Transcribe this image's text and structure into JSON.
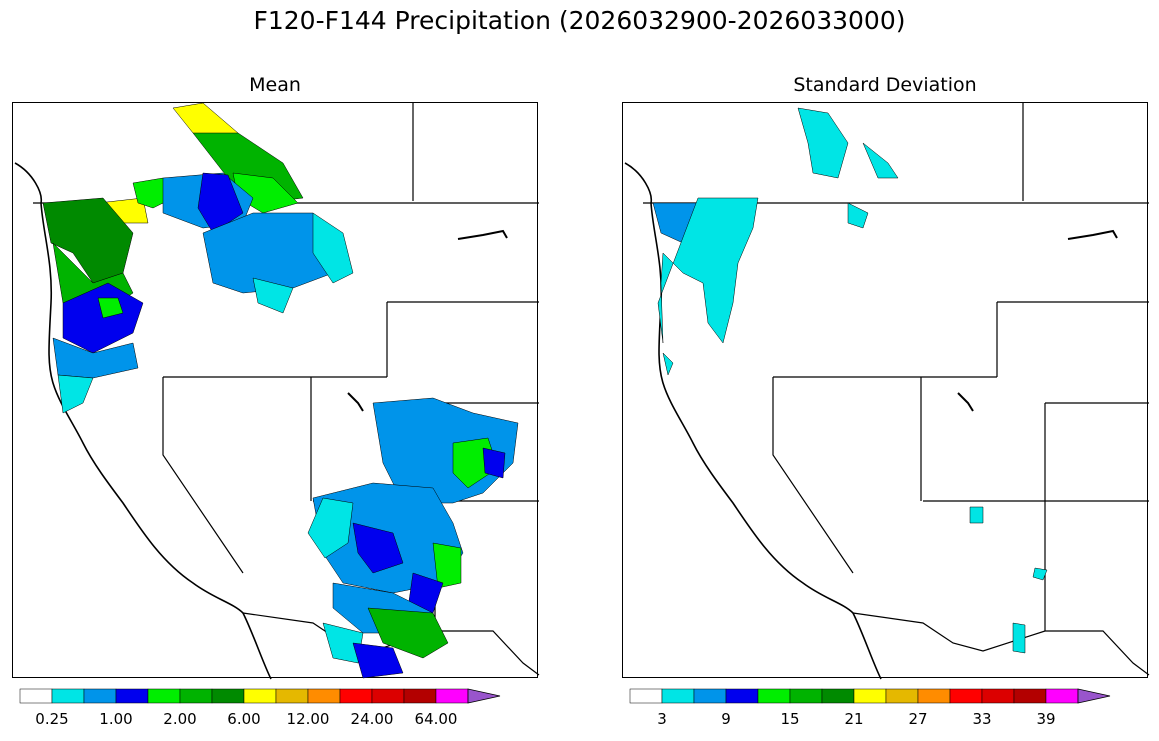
{
  "title": "F120-F144 Precipitation (2026032900-2026033000)",
  "panels": [
    {
      "title": "Mean",
      "colorbar": {
        "colors": [
          "#ffffff",
          "#00e5e5",
          "#0094ea",
          "#0000ee",
          "#00ee00",
          "#00b300",
          "#008a00",
          "#ffff00",
          "#e5b800",
          "#ff8c00",
          "#ff0000",
          "#dc0000",
          "#b30000",
          "#ff00ff",
          "#9955cc"
        ],
        "tick_labels": [
          "0.25",
          "1.00",
          "2.00",
          "6.00",
          "12.00",
          "24.00",
          "64.00"
        ],
        "extend": "max"
      }
    },
    {
      "title": "Standard Deviation",
      "colorbar": {
        "colors": [
          "#ffffff",
          "#00e5e5",
          "#0094ea",
          "#0000ee",
          "#00ee00",
          "#00b300",
          "#008a00",
          "#ffff00",
          "#e5b800",
          "#ff8c00",
          "#ff0000",
          "#dc0000",
          "#b30000",
          "#ff00ff",
          "#9955cc"
        ],
        "tick_labels": [
          "3",
          "9",
          "15",
          "21",
          "27",
          "33",
          "39"
        ],
        "extend": "max"
      }
    }
  ]
}
